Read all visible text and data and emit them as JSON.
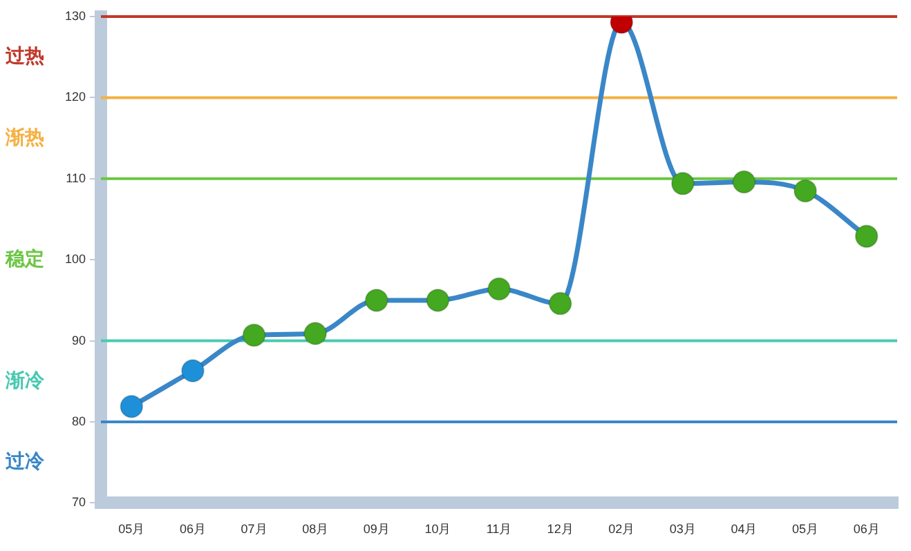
{
  "chart_data": {
    "type": "line",
    "categories": [
      "05月",
      "06月",
      "07月",
      "08月",
      "09月",
      "10月",
      "11月",
      "12月",
      "02月",
      "03月",
      "04月",
      "05月",
      "06月"
    ],
    "series": [
      {
        "color": "#3a87c8",
        "values": [
          81.9,
          86.3,
          90.7,
          90.9,
          95,
          95,
          96.4,
          94.6,
          129.3,
          109.4,
          109.6,
          108.5,
          102.9
        ],
        "colors": [
          "#1e90d8",
          "#1e90d8",
          "#44a820",
          "#44a820",
          "#44a820",
          "#44a820",
          "#44a820",
          "#44a820",
          "#c00000",
          "#44a820",
          "#44a820",
          "#44a820",
          "#44a820"
        ]
      }
    ],
    "ylim": [
      70,
      130
    ],
    "yticks": [
      70,
      80,
      90,
      100,
      110,
      120,
      130
    ],
    "grid": false,
    "legend": false,
    "marker": "circle",
    "line_style": "solid",
    "ref_lines": [
      {
        "axis": "y",
        "value": 130,
        "color": "#c0392b"
      },
      {
        "axis": "y",
        "value": 120,
        "color": "#f5b041"
      },
      {
        "axis": "y",
        "value": 110,
        "color": "#6cc644"
      },
      {
        "axis": "y",
        "value": 90,
        "color": "#48c9b0"
      },
      {
        "axis": "y",
        "value": 80,
        "color": "#3a87c8"
      }
    ],
    "annotations": [
      "过热",
      "渐热",
      "稳定",
      "渐冷",
      "过冷"
    ]
  }
}
